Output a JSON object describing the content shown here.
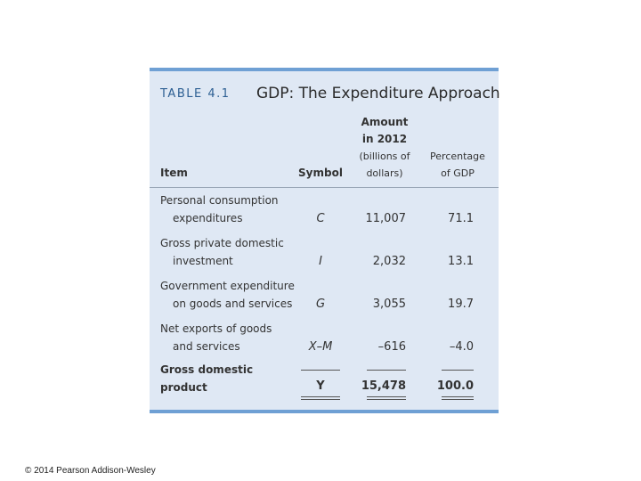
{
  "table": {
    "number": "TABLE 4.1",
    "title": "GDP: The Expenditure Approach",
    "headers": {
      "item": "Item",
      "symbol": "Symbol",
      "amount_line1": "Amount",
      "amount_line2": "in 2012",
      "amount_line3": "(billions of",
      "amount_line4": "dollars)",
      "percentage_line1": "Percentage",
      "percentage_line2": "of GDP"
    },
    "rows": [
      {
        "item_line1": "Personal consumption",
        "item_line2": "expenditures",
        "symbol": "C",
        "amount": "11,007",
        "percentage": "71.1"
      },
      {
        "item_line1": "Gross private domestic",
        "item_line2": "investment",
        "symbol": "I",
        "amount": "2,032",
        "percentage": "13.1"
      },
      {
        "item_line1": "Government expenditure",
        "item_line2": "on goods and services",
        "symbol": "G",
        "amount": "3,055",
        "percentage": "19.7"
      },
      {
        "item_line1": "Net exports of goods",
        "item_line2": "and services",
        "symbol": "X–M",
        "amount": "–616",
        "percentage": "–4.0"
      }
    ],
    "total": {
      "item_line1": "Gross domestic",
      "item_line2": "product",
      "symbol": "Y",
      "amount": "15,478",
      "percentage": "100.0"
    }
  },
  "footer": {
    "copyright": "© 2014 Pearson Addison-Wesley"
  },
  "colors": {
    "accent_rule": "#6fa0d4",
    "panel_bg": "#dfe8f4",
    "table_number": "#2d5f93"
  }
}
